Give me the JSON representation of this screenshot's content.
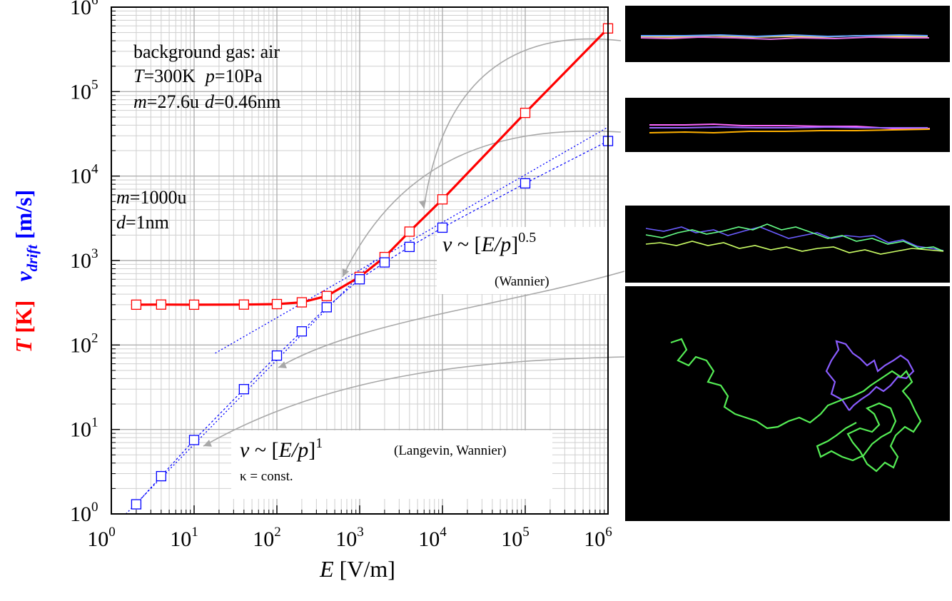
{
  "chart_data": {
    "type": "scatter",
    "xscale": "log",
    "yscale": "log",
    "xlim": [
      1,
      1000000
    ],
    "ylim": [
      1,
      1000000
    ],
    "grid": true,
    "xlabel": {
      "italic": "E",
      "rest": " [V/m]"
    },
    "ylabel": {
      "t_italic": "T",
      "t_rest": " [K]",
      "v_italic": "v",
      "v_sub": "drift",
      "v_rest": " [m/s]"
    },
    "x_ticks": [
      {
        "base": "10",
        "exp": "0"
      },
      {
        "base": "10",
        "exp": "1"
      },
      {
        "base": "10",
        "exp": "2"
      },
      {
        "base": "10",
        "exp": "3"
      },
      {
        "base": "10",
        "exp": "4"
      },
      {
        "base": "10",
        "exp": "5"
      },
      {
        "base": "10",
        "exp": "6"
      }
    ],
    "y_ticks": [
      {
        "base": "10",
        "exp": "0"
      },
      {
        "base": "10",
        "exp": "1"
      },
      {
        "base": "10",
        "exp": "2"
      },
      {
        "base": "10",
        "exp": "3"
      },
      {
        "base": "10",
        "exp": "4"
      },
      {
        "base": "10",
        "exp": "5"
      },
      {
        "base": "10",
        "exp": "6"
      }
    ],
    "series": [
      {
        "color": "#ff0000",
        "x": [
          2,
          4,
          10,
          40,
          100,
          200,
          400,
          1000,
          2000,
          4000,
          10000,
          100000,
          1000000
        ],
        "y": [
          300,
          301,
          300,
          301,
          305,
          320,
          380,
          640,
          1100,
          2200,
          5300,
          56000,
          560000
        ]
      },
      {
        "color": "#0000ff",
        "x": [
          2,
          4,
          10,
          40,
          100,
          200,
          400,
          1000,
          2000,
          4000,
          10000,
          100000,
          1000000
        ],
        "y": [
          1.3,
          2.8,
          7.5,
          30,
          75,
          145,
          280,
          600,
          950,
          1450,
          2450,
          8200,
          26000
        ]
      }
    ],
    "fits": [
      {
        "color": "#0000ff",
        "x": [
          1.5,
          1500
        ],
        "y": [
          1.0,
          1000
        ]
      },
      {
        "color": "#0000ff",
        "x": [
          18,
          1000000
        ],
        "y": [
          80,
          38000
        ]
      }
    ],
    "annotations": {
      "gas": {
        "line1": "background gas: air",
        "T_var": "T",
        "T_val": "=300K",
        "p_var": "p",
        "p_val": "=10Pa",
        "m_var": "m",
        "m_val": "=27.6u",
        "d_var": "d",
        "d_val": "=0.46nm"
      },
      "particle": {
        "m_var": "m",
        "m_val": "=1000u",
        "d_var": "d",
        "d_val": "=1nm"
      },
      "law_half": {
        "v": "v",
        "tilde": " ~ [",
        "Ep": "E/p",
        "close": "]",
        "exp": "0.5",
        "note": "(Wannier)"
      },
      "law_one": {
        "v": "v",
        "tilde": " ~ [",
        "Ep": "E/p",
        "close": "]",
        "exp": "1",
        "note": "(Langevin, Wannier)",
        "kappa": "κ = const."
      }
    }
  },
  "insets": [
    {
      "kind": "thin"
    },
    {
      "kind": "thin2"
    },
    {
      "kind": "band"
    },
    {
      "kind": "walk"
    }
  ]
}
